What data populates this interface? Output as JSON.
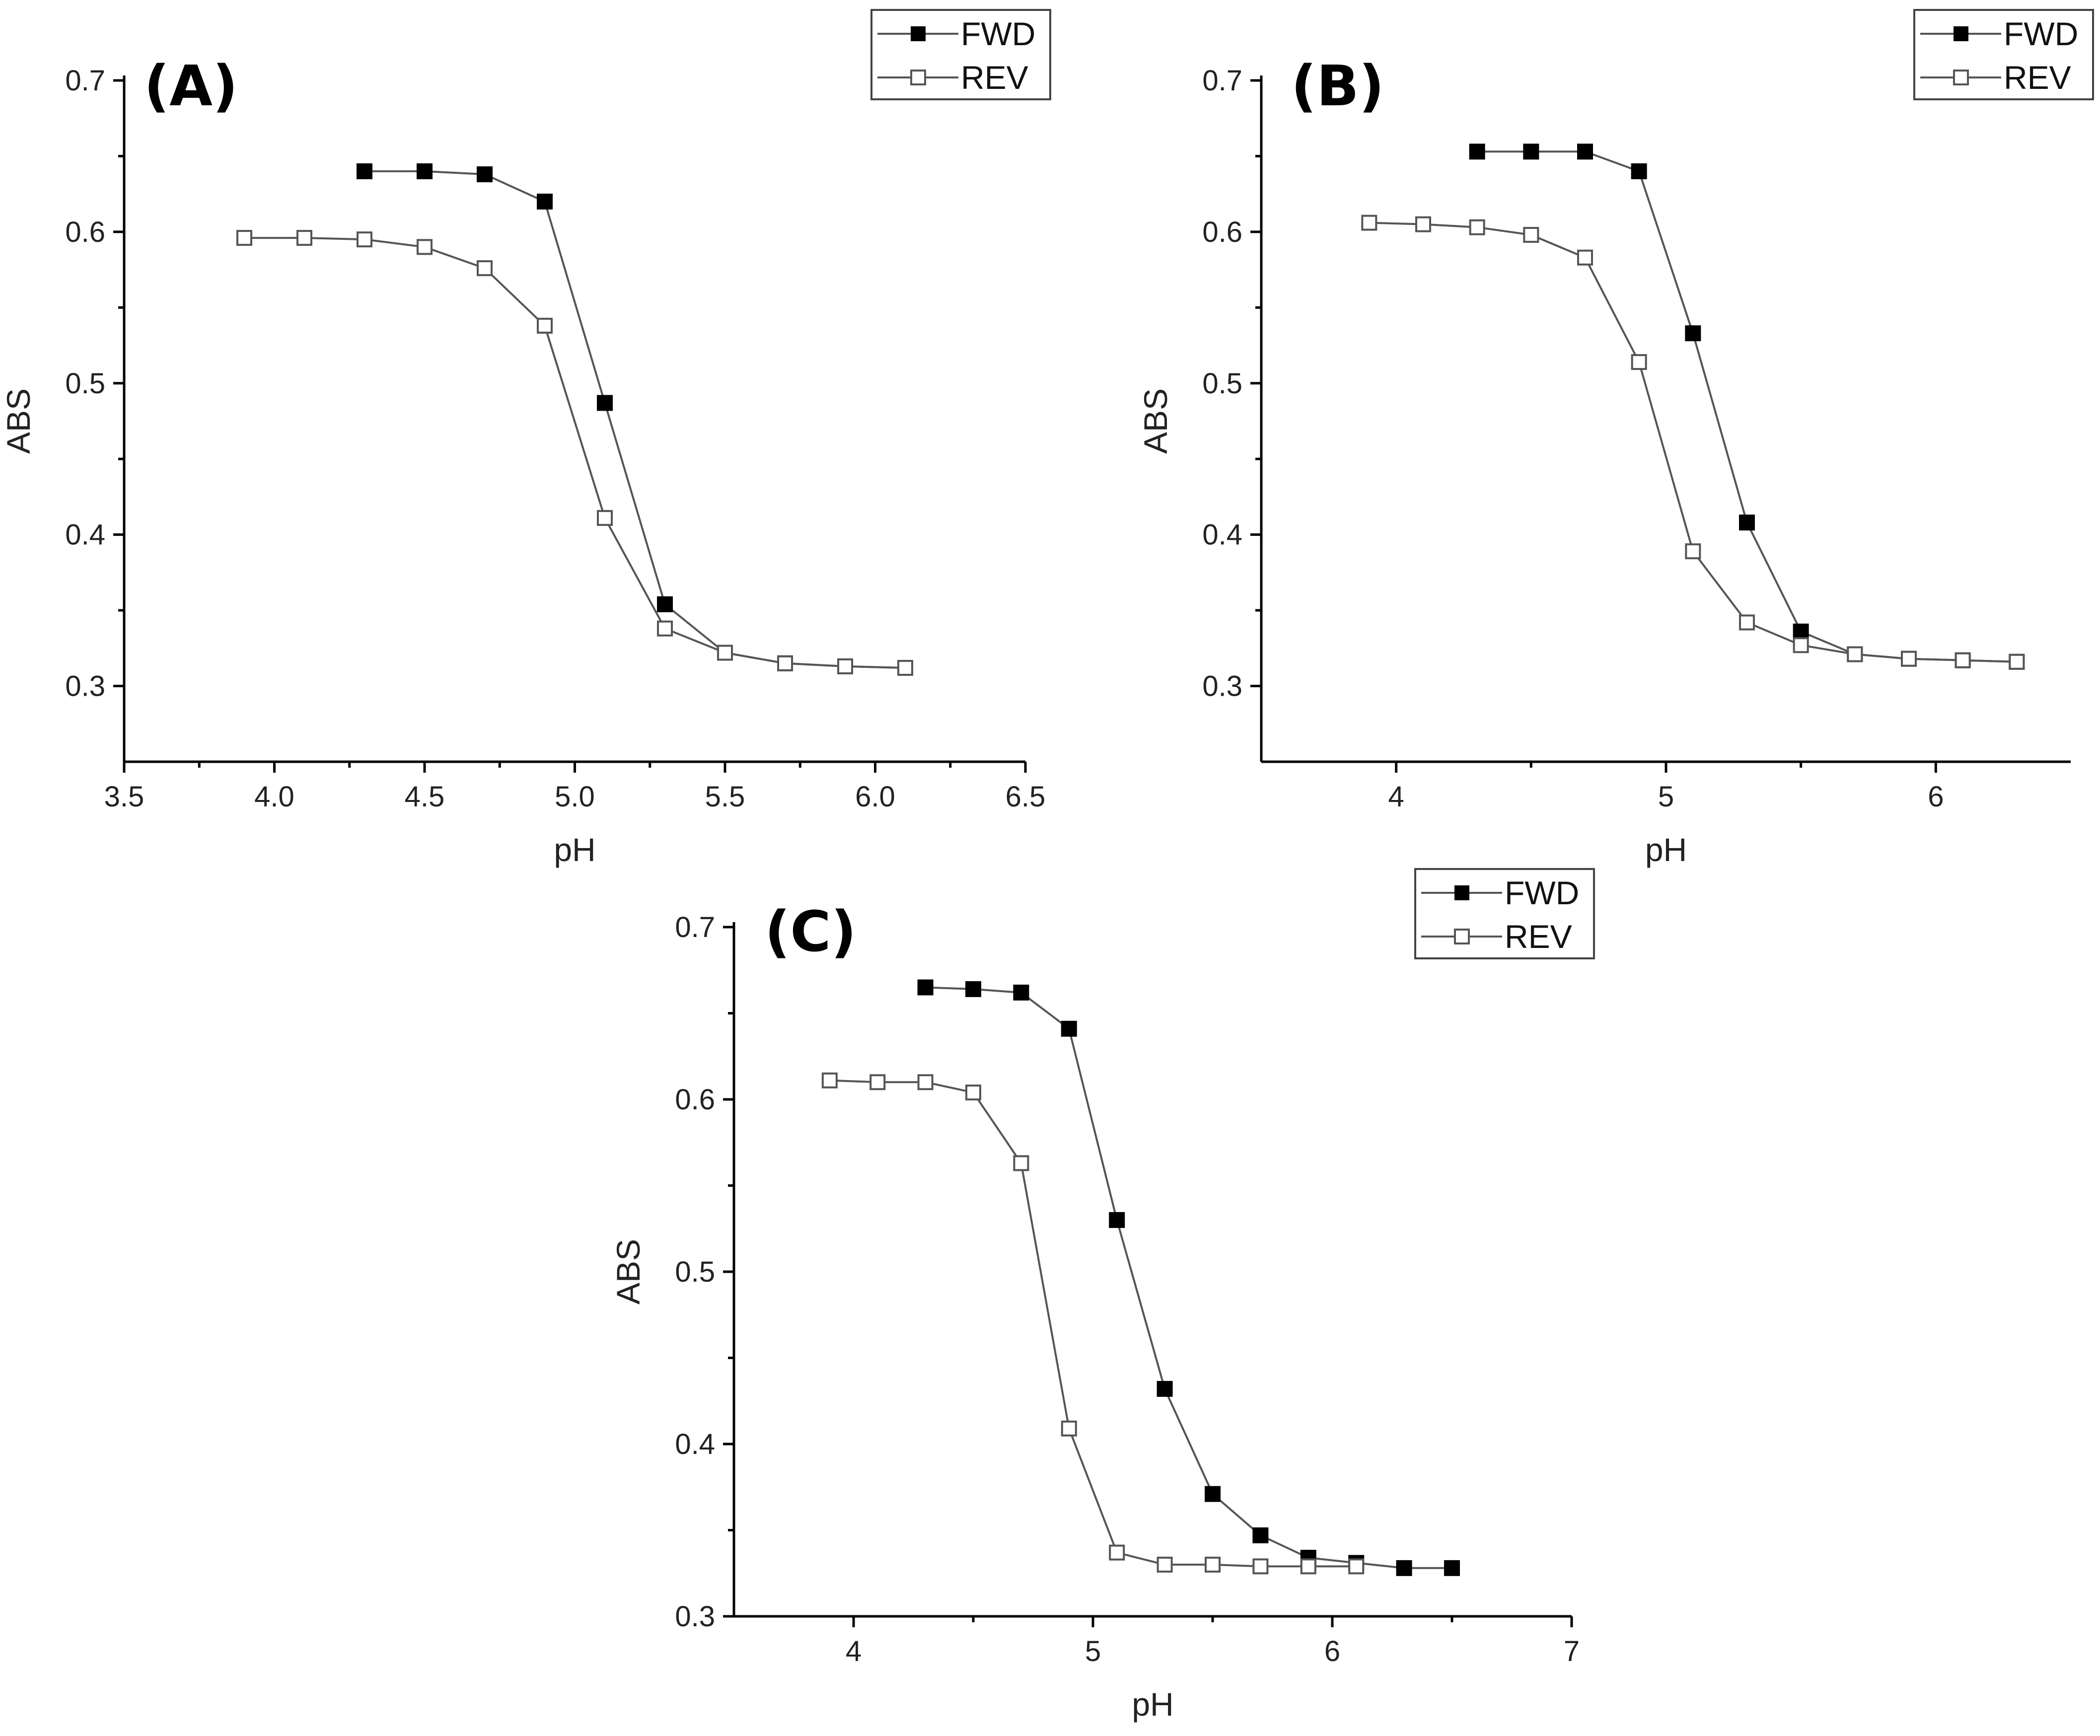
{
  "chart_data": [
    {
      "type": "line",
      "panel_label": "(A)",
      "xlabel": "pH",
      "ylabel": "ABS",
      "xlim": [
        3.5,
        6.5
      ],
      "ylim": [
        0.25,
        0.7
      ],
      "x_ticks": [
        3.5,
        4.0,
        4.5,
        5.0,
        5.5,
        6.0,
        6.5
      ],
      "x_tick_labels": [
        "3.5",
        "4.0",
        "4.5",
        "5.0",
        "5.5",
        "6.0",
        "6.5"
      ],
      "y_ticks": [
        0.3,
        0.4,
        0.5,
        0.6,
        0.7
      ],
      "y_tick_labels": [
        "0.3",
        "0.4",
        "0.5",
        "0.6",
        "0.7"
      ],
      "legend_position": "top-right",
      "series": [
        {
          "name": "FWD",
          "marker": "filled-square",
          "x": [
            4.3,
            4.5,
            4.7,
            4.9,
            5.1,
            5.3,
            5.5,
            5.7,
            5.9,
            6.1
          ],
          "values": [
            0.64,
            0.64,
            0.638,
            0.62,
            0.487,
            0.354,
            0.322,
            0.315,
            0.313,
            0.312
          ]
        },
        {
          "name": "REV",
          "marker": "open-square",
          "x": [
            3.9,
            4.1,
            4.3,
            4.5,
            4.7,
            4.9,
            5.1,
            5.3,
            5.5,
            5.7,
            5.9,
            6.1
          ],
          "values": [
            0.596,
            0.596,
            0.595,
            0.59,
            0.576,
            0.538,
            0.411,
            0.338,
            0.322,
            0.315,
            0.313,
            0.312
          ]
        }
      ]
    },
    {
      "type": "line",
      "panel_label": "(B)",
      "xlabel": "pH",
      "ylabel": "ABS",
      "xlim": [
        3.5,
        6.5
      ],
      "ylim": [
        0.25,
        0.7
      ],
      "x_ticks": [
        4,
        5,
        6
      ],
      "x_tick_labels": [
        "4",
        "5",
        "6"
      ],
      "y_ticks": [
        0.3,
        0.4,
        0.5,
        0.6,
        0.7
      ],
      "y_tick_labels": [
        "0.3",
        "0.4",
        "0.5",
        "0.6",
        "0.7"
      ],
      "legend_position": "top-right",
      "series": [
        {
          "name": "FWD",
          "marker": "filled-square",
          "x": [
            4.3,
            4.5,
            4.7,
            4.9,
            5.1,
            5.3,
            5.5,
            5.7,
            5.9,
            6.1,
            6.3
          ],
          "values": [
            0.653,
            0.653,
            0.653,
            0.64,
            0.533,
            0.408,
            0.336,
            0.321,
            0.318,
            0.317,
            0.316
          ]
        },
        {
          "name": "REV",
          "marker": "open-square",
          "x": [
            3.9,
            4.1,
            4.3,
            4.5,
            4.7,
            4.9,
            5.1,
            5.3,
            5.5,
            5.7,
            5.9,
            6.1,
            6.3
          ],
          "values": [
            0.606,
            0.605,
            0.603,
            0.598,
            0.583,
            0.514,
            0.389,
            0.342,
            0.327,
            0.321,
            0.318,
            0.317,
            0.316
          ]
        }
      ]
    },
    {
      "type": "line",
      "panel_label": "(C)",
      "xlabel": "pH",
      "ylabel": "ABS",
      "xlim": [
        3.5,
        7
      ],
      "ylim": [
        0.3,
        0.7
      ],
      "x_ticks": [
        4,
        5,
        6,
        7
      ],
      "x_tick_labels": [
        "4",
        "5",
        "6",
        "7"
      ],
      "y_ticks": [
        0.3,
        0.4,
        0.5,
        0.6,
        0.7
      ],
      "y_tick_labels": [
        "0.3",
        "0.4",
        "0.5",
        "0.6",
        "0.7"
      ],
      "legend_position": "top-right",
      "series": [
        {
          "name": "FWD",
          "marker": "filled-square",
          "x": [
            4.3,
            4.5,
            4.7,
            4.9,
            5.1,
            5.3,
            5.5,
            5.7,
            5.9,
            6.1,
            6.3,
            6.5
          ],
          "values": [
            0.665,
            0.664,
            0.662,
            0.641,
            0.53,
            0.432,
            0.371,
            0.347,
            0.334,
            0.331,
            0.328,
            0.328
          ]
        },
        {
          "name": "REV",
          "marker": "open-square",
          "x": [
            3.9,
            4.1,
            4.3,
            4.5,
            4.7,
            4.9,
            5.1,
            5.3,
            5.5,
            5.7,
            5.9,
            6.1
          ],
          "values": [
            0.611,
            0.61,
            0.61,
            0.604,
            0.563,
            0.409,
            0.337,
            0.33,
            0.33,
            0.329,
            0.329,
            0.329
          ]
        }
      ]
    }
  ]
}
